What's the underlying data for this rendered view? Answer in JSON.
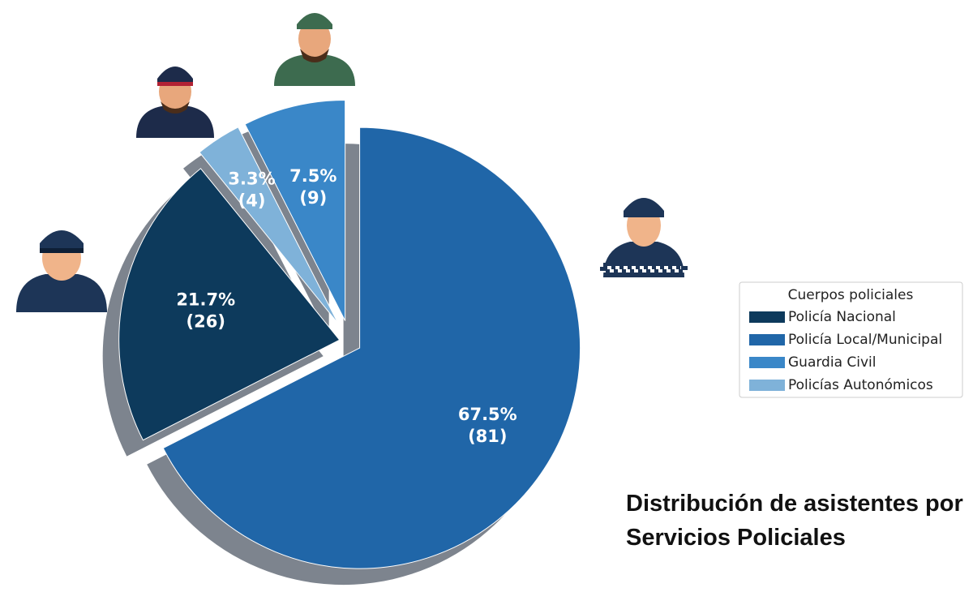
{
  "chart_data": {
    "type": "pie",
    "title": "Distribución de asistentes por Servicios Policiales",
    "legend_title": "Cuerpos policiales",
    "legend": "right",
    "categories": [
      "Policía Nacional",
      "Policía Local/Municipal",
      "Guardia Civil",
      "Policías Autonómicos"
    ],
    "values": [
      26,
      81,
      9,
      4
    ],
    "value_labels": [
      [
        "21.7%",
        "(26)"
      ],
      [
        "67.5%",
        "(81)"
      ],
      [
        "7.5%",
        "(9)"
      ],
      [
        "3.3%",
        "(4)"
      ]
    ],
    "colors": [
      "#0d3a5c",
      "#2066a8",
      "#3a87c8",
      "#7fb2d9"
    ],
    "shadow": true
  }
}
